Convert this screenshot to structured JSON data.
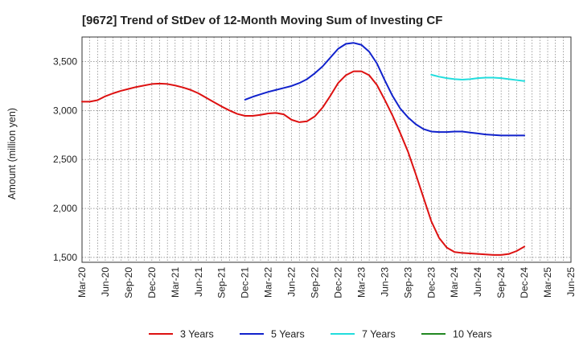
{
  "chart_data": {
    "type": "line",
    "title": "[9672]  Trend of StDev of 12-Month Moving Sum of Investing CF",
    "xlabel": "",
    "ylabel": "Amount (million yen)",
    "ylim": [
      1450,
      3750
    ],
    "yticks": [
      1500,
      2000,
      2500,
      3000,
      3500
    ],
    "ytick_labels": [
      "1,500",
      "2,000",
      "2,500",
      "3,000",
      "3,500"
    ],
    "x_tick_labels": [
      "Mar-20",
      "Jun-20",
      "Sep-20",
      "Dec-20",
      "Mar-21",
      "Jun-21",
      "Sep-21",
      "Dec-21",
      "Mar-22",
      "Jun-22",
      "Sep-22",
      "Dec-22",
      "Mar-23",
      "Jun-23",
      "Sep-23",
      "Dec-23",
      "Mar-24",
      "Jun-24",
      "Sep-24",
      "Dec-24",
      "Mar-25",
      "Jun-25"
    ],
    "grid": true,
    "legend_position": "bottom",
    "series": [
      {
        "name": "3 Years",
        "color": "#dd1111",
        "x": [
          "2020-03",
          "2020-04",
          "2020-05",
          "2020-06",
          "2020-07",
          "2020-08",
          "2020-09",
          "2020-10",
          "2020-11",
          "2020-12",
          "2021-01",
          "2021-02",
          "2021-03",
          "2021-04",
          "2021-05",
          "2021-06",
          "2021-07",
          "2021-08",
          "2021-09",
          "2021-10",
          "2021-11",
          "2021-12",
          "2022-01",
          "2022-02",
          "2022-03",
          "2022-04",
          "2022-05",
          "2022-06",
          "2022-07",
          "2022-08",
          "2022-09",
          "2022-10",
          "2022-11",
          "2022-12",
          "2023-01",
          "2023-02",
          "2023-03",
          "2023-04",
          "2023-05",
          "2023-06",
          "2023-07",
          "2023-08",
          "2023-09",
          "2023-10",
          "2023-11",
          "2023-12",
          "2024-01",
          "2024-02",
          "2024-03",
          "2024-04",
          "2024-05",
          "2024-06",
          "2024-07",
          "2024-08",
          "2024-09",
          "2024-10",
          "2024-11",
          "2024-12"
        ],
        "values": [
          3090,
          3090,
          3105,
          3145,
          3175,
          3200,
          3220,
          3240,
          3255,
          3270,
          3275,
          3270,
          3255,
          3235,
          3210,
          3175,
          3130,
          3085,
          3040,
          3000,
          2965,
          2945,
          2945,
          2955,
          2970,
          2975,
          2960,
          2905,
          2880,
          2890,
          2940,
          3030,
          3150,
          3280,
          3360,
          3400,
          3400,
          3360,
          3260,
          3110,
          2950,
          2770,
          2580,
          2350,
          2110,
          1870,
          1700,
          1600,
          1555,
          1545,
          1540,
          1535,
          1530,
          1525,
          1525,
          1535,
          1565,
          1610
        ]
      },
      {
        "name": "5 Years",
        "color": "#1122cc",
        "x": [
          "2021-12",
          "2022-01",
          "2022-02",
          "2022-03",
          "2022-04",
          "2022-05",
          "2022-06",
          "2022-07",
          "2022-08",
          "2022-09",
          "2022-10",
          "2022-11",
          "2022-12",
          "2023-01",
          "2023-02",
          "2023-03",
          "2023-04",
          "2023-05",
          "2023-06",
          "2023-07",
          "2023-08",
          "2023-09",
          "2023-10",
          "2023-11",
          "2023-12",
          "2024-01",
          "2024-02",
          "2024-03",
          "2024-04",
          "2024-05",
          "2024-06",
          "2024-07",
          "2024-08",
          "2024-09",
          "2024-10",
          "2024-11",
          "2024-12"
        ],
        "values": [
          3110,
          3140,
          3165,
          3190,
          3210,
          3230,
          3250,
          3280,
          3320,
          3380,
          3450,
          3540,
          3630,
          3680,
          3690,
          3670,
          3600,
          3480,
          3310,
          3150,
          3020,
          2930,
          2860,
          2810,
          2785,
          2780,
          2780,
          2785,
          2785,
          2775,
          2765,
          2755,
          2750,
          2745,
          2745,
          2745,
          2745
        ]
      },
      {
        "name": "7 Years",
        "color": "#22dddd",
        "x": [
          "2023-12",
          "2024-01",
          "2024-02",
          "2024-03",
          "2024-04",
          "2024-05",
          "2024-06",
          "2024-07",
          "2024-08",
          "2024-09",
          "2024-10",
          "2024-11",
          "2024-12"
        ],
        "values": [
          3365,
          3345,
          3330,
          3320,
          3315,
          3320,
          3330,
          3335,
          3335,
          3330,
          3320,
          3310,
          3300
        ]
      },
      {
        "name": "10 Years",
        "color": "#228822",
        "x": [],
        "values": []
      }
    ]
  }
}
